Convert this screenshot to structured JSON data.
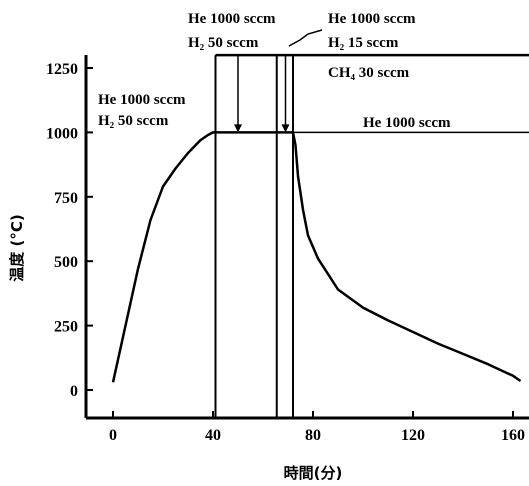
{
  "chart_data": {
    "type": "line",
    "xlabel": "時間(分)",
    "ylabel": "温度 (°C)",
    "xlim": [
      -10,
      165
    ],
    "ylim": [
      -80,
      1300
    ],
    "x_ticks": [
      0,
      40,
      80,
      120,
      160
    ],
    "y_ticks": [
      0,
      250,
      500,
      750,
      1000,
      1250
    ],
    "series": [
      {
        "x": [
          0,
          5,
          10,
          15,
          20,
          25,
          30,
          35,
          38,
          40,
          42,
          50,
          60,
          66,
          70,
          72,
          73,
          74,
          76,
          78,
          82,
          90,
          100,
          110,
          120,
          130,
          140,
          150,
          160,
          163
        ],
        "y": [
          30,
          250,
          470,
          660,
          790,
          860,
          920,
          970,
          990,
          1000,
          1000,
          1000,
          1000,
          1000,
          1000,
          1000,
          950,
          830,
          700,
          600,
          510,
          390,
          320,
          270,
          225,
          180,
          140,
          100,
          55,
          35
        ]
      }
    ],
    "vertical_markers": [
      41,
      65.5,
      72
    ],
    "arrows": [
      {
        "x": 50,
        "y_from": 1300,
        "y_to": 1000
      },
      {
        "x": 69,
        "y_from": 1300,
        "y_to": 1000
      }
    ],
    "hlines": [
      1000,
      1300
    ],
    "annotations": [
      {
        "lines": [
          "He 1000 sccm",
          "H₂ 50 sccm"
        ]
      },
      {
        "lines": [
          "He 1000 sccm",
          "H₂ 50 sccm"
        ]
      },
      {
        "lines": [
          "He 1000 sccm",
          "H₂ 15 sccm",
          "CH₄ 30 sccm"
        ]
      },
      {
        "lines": [
          "He 1000 sccm"
        ]
      }
    ]
  }
}
